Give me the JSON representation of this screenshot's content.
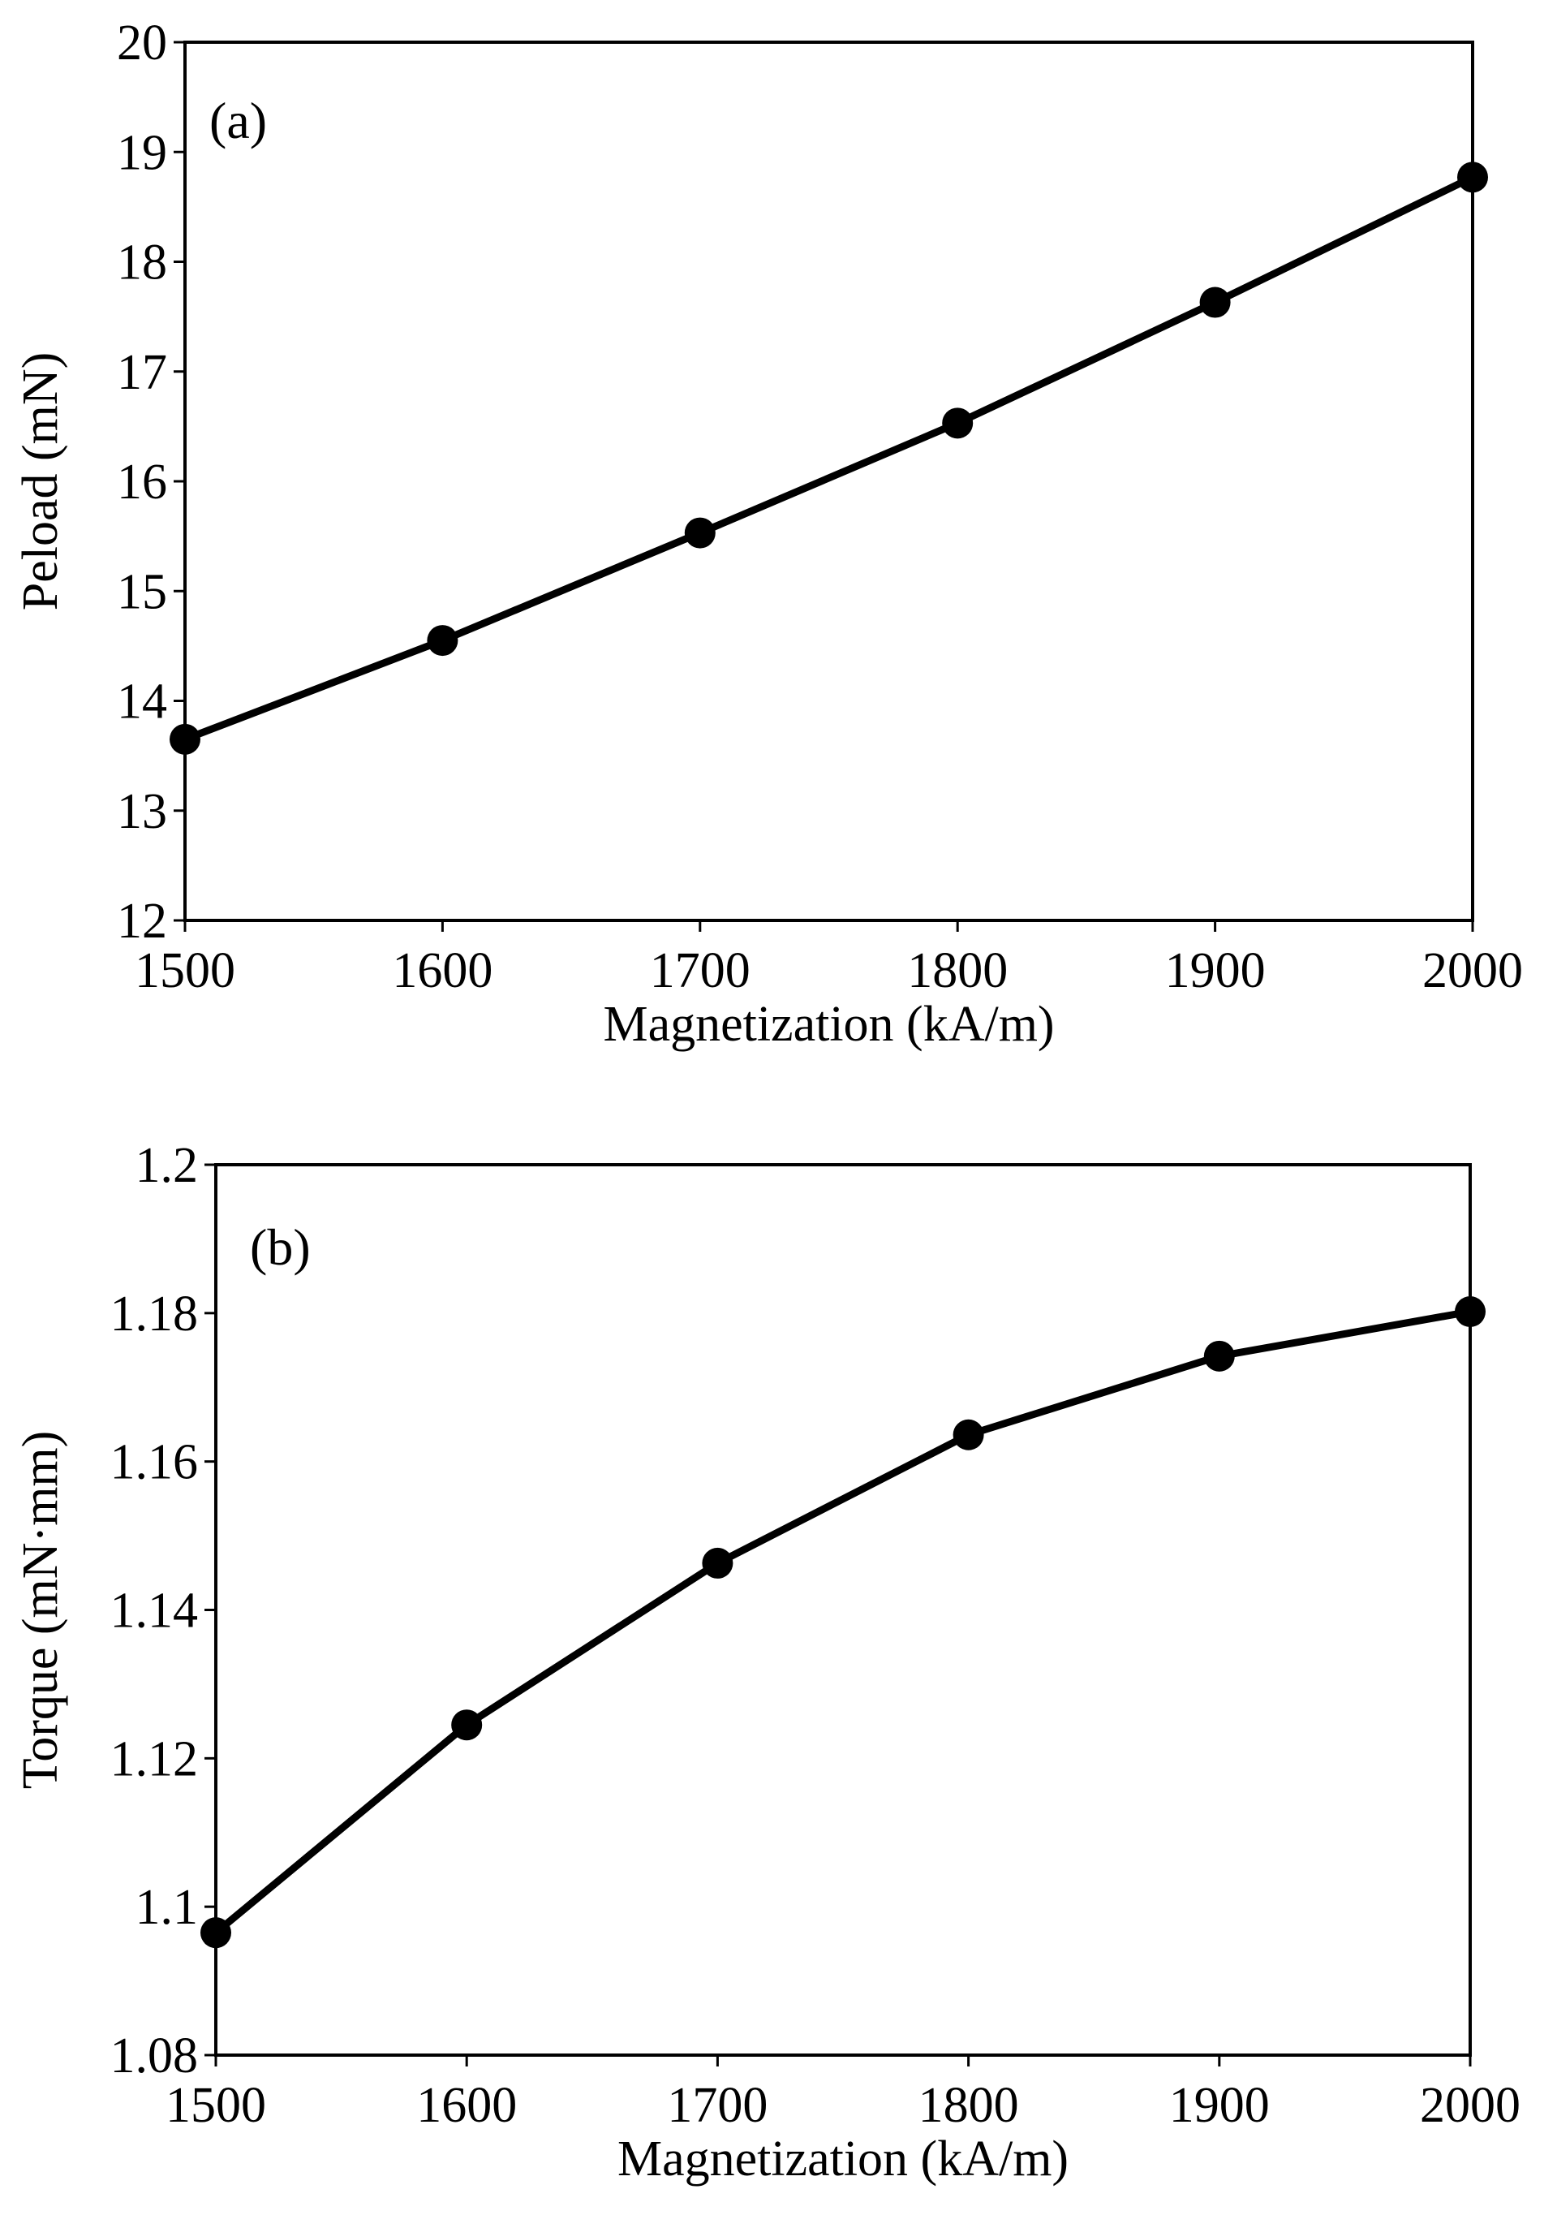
{
  "chart_data": [
    {
      "type": "line",
      "panel_label": "(a)",
      "title": "",
      "xlabel": "Magnetization  (kA/m)",
      "ylabel": "Peload (mN)",
      "xlim": [
        1500,
        2000
      ],
      "ylim": [
        12,
        20
      ],
      "x_ticks": [
        "1500",
        "1600",
        "1700",
        "1800",
        "1900",
        "2000"
      ],
      "y_ticks": [
        "12",
        "13",
        "14",
        "15",
        "16",
        "17",
        "18",
        "19",
        "20"
      ],
      "grid": false,
      "series": [
        {
          "name": "Peload",
          "color": "#000000",
          "x": [
            1500,
            1600,
            1700,
            1800,
            1900,
            2000
          ],
          "values": [
            13.65,
            14.55,
            15.53,
            16.53,
            17.63,
            18.77
          ]
        }
      ]
    },
    {
      "type": "line",
      "panel_label": "(b)",
      "title": "",
      "xlabel": "Magnetization  (kA/m)",
      "ylabel": "Torque (mN·mm)",
      "xlim": [
        1500,
        2000
      ],
      "ylim": [
        1.08,
        1.2
      ],
      "x_ticks": [
        "1500",
        "1600",
        "1700",
        "1800",
        "1900",
        "2000"
      ],
      "y_ticks": [
        "1.08",
        "1.1",
        "1.12",
        "1.14",
        "1.16",
        "1.18",
        "1.2"
      ],
      "grid": false,
      "series": [
        {
          "name": "Torque",
          "color": "#000000",
          "x": [
            1500,
            1600,
            1700,
            1800,
            1900,
            2000
          ],
          "values": [
            1.0965,
            1.1245,
            1.1463,
            1.1636,
            1.1742,
            1.1802
          ]
        }
      ]
    }
  ]
}
